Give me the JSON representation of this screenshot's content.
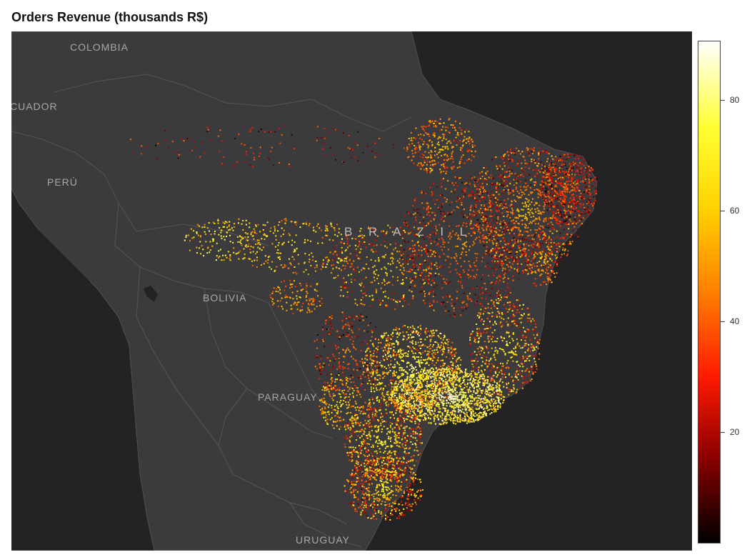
{
  "title": "Orders Revenue (thousands R$)",
  "map": {
    "countries": [
      {
        "name": "COLOMBIA"
      },
      {
        "name": "CUADOR"
      },
      {
        "name": "PERÚ"
      },
      {
        "name": "BOLIVIA"
      },
      {
        "name": "PARAGUAY"
      },
      {
        "name": "URUGUAY"
      },
      {
        "name": "B R A Z I L"
      }
    ],
    "background_color": "#232326",
    "land_color": "#3a3a3c",
    "border_color": "#4d4d50"
  },
  "colorbar": {
    "min": 0,
    "max": 90,
    "ticks": [
      "80",
      "60",
      "40",
      "20"
    ],
    "tick_values": [
      80,
      60,
      40,
      20
    ],
    "colors": [
      "#000000",
      "#8b0000",
      "#ff1a00",
      "#ff7f00",
      "#ffd400",
      "#ffff33",
      "#ffffff"
    ]
  },
  "chart_data": {
    "type": "scatter",
    "title": "Orders Revenue (thousands R$)",
    "colorscale_range": [
      0,
      90
    ],
    "colorbar_ticks": [
      20,
      40,
      60,
      80
    ],
    "legend": "right"
  }
}
